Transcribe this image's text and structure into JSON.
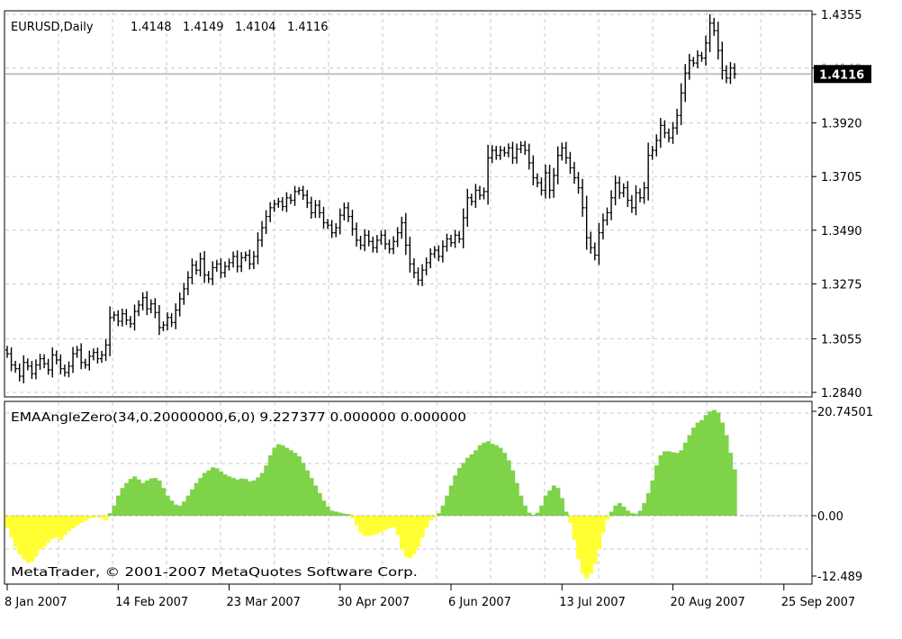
{
  "chart_data": [
    {
      "type": "ohlc",
      "header": {
        "symbol_period": "EURUSD,Daily",
        "open": "1.4148",
        "high": "1.4149",
        "low": "1.4104",
        "close": "1.4116"
      },
      "y_ticks": [
        "1.4355",
        "1.4140",
        "1.3920",
        "1.3705",
        "1.3490",
        "1.3275",
        "1.3055",
        "1.2840"
      ],
      "ylim": [
        1.284,
        1.4355
      ],
      "current_price_label": "1.4116",
      "current_price": 1.4116,
      "close_series_daily": [
        1.2995,
        1.295,
        1.2935,
        1.2905,
        1.296,
        1.2945,
        1.2915,
        1.295,
        1.2975,
        1.2955,
        1.293,
        1.299,
        1.297,
        1.2935,
        1.292,
        1.2945,
        1.2995,
        1.301,
        1.296,
        1.295,
        1.2985,
        1.3,
        1.2975,
        1.299,
        1.303,
        1.314,
        1.315,
        1.3125,
        1.3155,
        1.313,
        1.3115,
        1.3165,
        1.319,
        1.322,
        1.3175,
        1.3195,
        1.316,
        1.31,
        1.311,
        1.314,
        1.312,
        1.317,
        1.3215,
        1.3255,
        1.33,
        1.335,
        1.333,
        1.3375,
        1.331,
        1.3295,
        1.334,
        1.3355,
        1.332,
        1.3345,
        1.336,
        1.3385,
        1.3345,
        1.338,
        1.339,
        1.3355,
        1.3385,
        1.345,
        1.35,
        1.3545,
        1.358,
        1.3595,
        1.3605,
        1.3585,
        1.362,
        1.361,
        1.3645,
        1.365,
        1.363,
        1.36,
        1.356,
        1.359,
        1.356,
        1.352,
        1.351,
        1.348,
        1.35,
        1.355,
        1.358,
        1.3545,
        1.3495,
        1.345,
        1.343,
        1.347,
        1.3445,
        1.342,
        1.345,
        1.347,
        1.3435,
        1.3415,
        1.3445,
        1.348,
        1.352,
        1.343,
        1.3355,
        1.332,
        1.329,
        1.333,
        1.336,
        1.3395,
        1.341,
        1.3385,
        1.3425,
        1.3455,
        1.344,
        1.347,
        1.3455,
        1.354,
        1.362,
        1.3605,
        1.365,
        1.363,
        1.3645,
        1.378,
        1.381,
        1.379,
        1.381,
        1.38,
        1.382,
        1.378,
        1.3815,
        1.383,
        1.381,
        1.376,
        1.37,
        1.368,
        1.365,
        1.372,
        1.365,
        1.371,
        1.379,
        1.382,
        1.378,
        1.374,
        1.37,
        1.366,
        1.358,
        1.346,
        1.342,
        1.339,
        1.348,
        1.353,
        1.356,
        1.362,
        1.368,
        1.364,
        1.366,
        1.361,
        1.358,
        1.364,
        1.362,
        1.366,
        1.379,
        1.381,
        1.385,
        1.391,
        1.388,
        1.386,
        1.39,
        1.395,
        1.404,
        1.412,
        1.417,
        1.416,
        1.419,
        1.418,
        1.424,
        1.432,
        1.429,
        1.421,
        1.413,
        1.41,
        1.414,
        1.4116
      ],
      "x_ticks": [
        {
          "label": "8 Jan 2007",
          "index": 0
        },
        {
          "label": "14 Feb 2007",
          "index": 27
        },
        {
          "label": "23 Mar 2007",
          "index": 54
        },
        {
          "label": "30 Apr 2007",
          "index": 81
        },
        {
          "label": "6 Jun 2007",
          "index": 108
        },
        {
          "label": "13 Jul 2007",
          "index": 135
        },
        {
          "label": "20 Aug 2007",
          "index": 162
        },
        {
          "label": "25 Sep 2007",
          "index": 189
        }
      ],
      "grid": "dashed",
      "bar_color": "#000000",
      "price_line_color": "#c0c0c0"
    },
    {
      "type": "histogram",
      "indicator_header": "EMAAngleZero(34,0.20000000,6,0) 9.227377 0.000000 0.000000",
      "y_ticks": [
        "20.74501",
        "0.00",
        "-12.489"
      ],
      "ylim": [
        -12.489,
        20.74501
      ],
      "positive_color": "#7ed348",
      "negative_color": "#ffff33",
      "values_daily": [
        -2.5,
        -4.5,
        -6.5,
        -8.0,
        -9.0,
        -9.8,
        -9.5,
        -8.5,
        -7.0,
        -6.5,
        -5.5,
        -4.8,
        -4.5,
        -5.0,
        -4.0,
        -3.2,
        -2.6,
        -2.0,
        -1.5,
        -1.0,
        -0.6,
        -0.4,
        -0.3,
        -0.6,
        -1.0,
        0.5,
        2.0,
        4.0,
        5.5,
        6.5,
        7.3,
        7.8,
        7.2,
        6.5,
        7.0,
        7.4,
        7.5,
        7.0,
        5.5,
        4.0,
        3.0,
        2.2,
        2.0,
        2.8,
        4.0,
        5.2,
        6.5,
        7.5,
        8.5,
        9.0,
        9.6,
        9.4,
        8.8,
        8.2,
        7.8,
        7.5,
        7.2,
        7.4,
        7.3,
        6.8,
        7.0,
        7.6,
        8.5,
        10.0,
        12.0,
        13.5,
        14.2,
        14.0,
        13.5,
        13.0,
        12.5,
        11.8,
        10.5,
        9.0,
        7.5,
        6.0,
        4.5,
        3.0,
        1.8,
        1.0,
        0.8,
        0.6,
        0.4,
        0.3,
        -0.5,
        -2.0,
        -3.5,
        -4.2,
        -4.2,
        -4.0,
        -3.8,
        -3.4,
        -3.0,
        -2.6,
        -2.4,
        -4.0,
        -7.0,
        -8.5,
        -8.8,
        -8.0,
        -6.5,
        -4.5,
        -2.5,
        -1.0,
        -0.4,
        0.5,
        2.0,
        4.0,
        6.0,
        8.0,
        9.5,
        10.5,
        11.5,
        12.2,
        13.0,
        14.0,
        14.5,
        14.8,
        14.3,
        14.0,
        13.5,
        12.5,
        11.0,
        9.0,
        6.5,
        4.0,
        2.0,
        0.6,
        0.2,
        0.6,
        2.0,
        4.0,
        5.0,
        6.0,
        5.5,
        3.5,
        0.8,
        -1.5,
        -5.0,
        -9.0,
        -12.0,
        -13.0,
        -12.0,
        -10.0,
        -7.0,
        -3.5,
        -0.8,
        0.8,
        2.0,
        2.5,
        1.8,
        1.0,
        0.5,
        0.4,
        1.0,
        2.5,
        4.5,
        7.0,
        10.0,
        12.0,
        12.8,
        12.8,
        12.6,
        12.5,
        13.0,
        14.5,
        16.0,
        17.5,
        18.5,
        19.0,
        20.0,
        20.7,
        21.0,
        20.5,
        18.5,
        16.0,
        12.5,
        9.2
      ],
      "copyright": "MetaTrader, © 2001-2007 MetaQuotes Software Corp."
    }
  ]
}
